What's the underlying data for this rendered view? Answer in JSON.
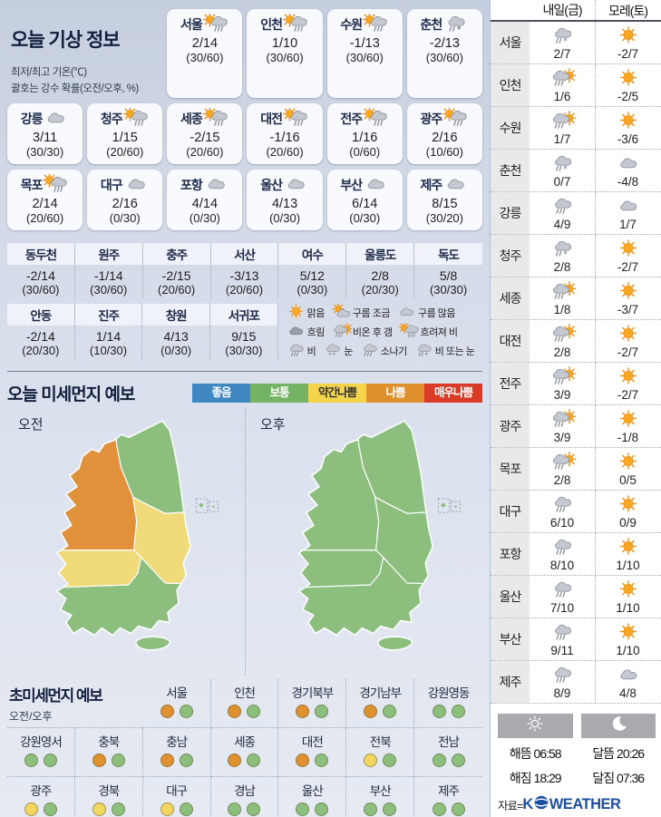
{
  "header": {
    "title": "오늘 기상 정보",
    "subtitle1": "최저/최고 기온(℃)",
    "subtitle2": "괄호는 강수 확률(오전/오후, %)"
  },
  "today": {
    "rows": [
      [
        {
          "city": "서울",
          "icon": "sun-rain",
          "temp": "2/14",
          "prob": "(30/60)"
        },
        {
          "city": "인천",
          "icon": "sun-rain",
          "temp": "1/10",
          "prob": "(30/60)"
        },
        {
          "city": "수원",
          "icon": "sun-rain",
          "temp": "-1/13",
          "prob": "(30/60)"
        },
        {
          "city": "춘천",
          "icon": "rain-snow",
          "temp": "-2/13",
          "prob": "(30/60)"
        }
      ],
      [
        {
          "city": "강릉",
          "icon": "cloud",
          "temp": "3/11",
          "prob": "(30/30)"
        },
        {
          "city": "청주",
          "icon": "sun-rain",
          "temp": "1/15",
          "prob": "(20/60)"
        },
        {
          "city": "세종",
          "icon": "sun-rain",
          "temp": "-2/15",
          "prob": "(20/60)"
        },
        {
          "city": "대전",
          "icon": "sun-rain",
          "temp": "-1/16",
          "prob": "(20/60)"
        },
        {
          "city": "전주",
          "icon": "sun-rain",
          "temp": "1/16",
          "prob": "(0/60)"
        },
        {
          "city": "광주",
          "icon": "sun-rain",
          "temp": "2/16",
          "prob": "(10/60)"
        }
      ],
      [
        {
          "city": "목포",
          "icon": "sun-rain",
          "temp": "2/14",
          "prob": "(20/60)"
        },
        {
          "city": "대구",
          "icon": "cloud",
          "temp": "2/16",
          "prob": "(0/30)"
        },
        {
          "city": "포항",
          "icon": "cloud",
          "temp": "4/14",
          "prob": "(0/30)"
        },
        {
          "city": "울산",
          "icon": "cloud",
          "temp": "4/13",
          "prob": "(0/30)"
        },
        {
          "city": "부산",
          "icon": "cloud",
          "temp": "6/14",
          "prob": "(0/30)"
        },
        {
          "city": "제주",
          "icon": "cloud",
          "temp": "8/15",
          "prob": "(30/20)"
        }
      ]
    ]
  },
  "extra": {
    "row1": [
      {
        "name": "동두천",
        "temp": "-2/14",
        "prob": "(30/60)"
      },
      {
        "name": "원주",
        "temp": "-1/14",
        "prob": "(30/60)"
      },
      {
        "name": "충주",
        "temp": "-2/15",
        "prob": "(20/60)"
      },
      {
        "name": "서산",
        "temp": "-3/13",
        "prob": "(20/60)"
      },
      {
        "name": "여수",
        "temp": "5/12",
        "prob": "(0/30)"
      },
      {
        "name": "울릉도",
        "temp": "2/8",
        "prob": "(20/30)"
      },
      {
        "name": "독도",
        "temp": "5/8",
        "prob": "(30/30)"
      }
    ],
    "row2": [
      {
        "name": "안동",
        "temp": "-2/14",
        "prob": "(20/30)"
      },
      {
        "name": "진주",
        "temp": "1/14",
        "prob": "(10/30)"
      },
      {
        "name": "창원",
        "temp": "4/13",
        "prob": "(0/30)"
      },
      {
        "name": "서귀포",
        "temp": "9/15",
        "prob": "(30/30)"
      }
    ]
  },
  "icon_legend": [
    {
      "icon": "sun",
      "label": "맑음"
    },
    {
      "icon": "sun-cloud",
      "label": "구름 조금"
    },
    {
      "icon": "cloud",
      "label": "구름 많음"
    },
    {
      "icon": "dark-cloud",
      "label": "흐림"
    },
    {
      "icon": "rain-sun",
      "label": "비온 후 갬"
    },
    {
      "icon": "sun-rain",
      "label": "흐려져 비"
    },
    {
      "icon": "rain",
      "label": "비"
    },
    {
      "icon": "snow",
      "label": "눈"
    },
    {
      "icon": "shower",
      "label": "소나기"
    },
    {
      "icon": "rain-snow",
      "label": "비 또는 눈"
    }
  ],
  "dust": {
    "title": "오늘 미세먼지 예보",
    "levels": [
      {
        "label": "좋음",
        "bg": "#3f87c1",
        "fg": "#ffffff"
      },
      {
        "label": "보통",
        "bg": "#74b364",
        "fg": "#ffffff"
      },
      {
        "label": "약간나쁨",
        "bg": "#f4d44a",
        "fg": "#333333"
      },
      {
        "label": "나쁨",
        "bg": "#df8f2c",
        "fg": "#ffffff"
      },
      {
        "label": "매우나쁨",
        "bg": "#da3b27",
        "fg": "#ffffff"
      }
    ],
    "map_palette": {
      "나쁨": "#e0913a",
      "약간나쁨": "#f1da7a",
      "보통": "#8cbf7e"
    },
    "maps": {
      "am": {
        "label": "오전",
        "regions": {
          "northwest": "나쁨",
          "northeast": "보통",
          "east_central": "약간나쁨",
          "southwest_mid": "약간나쁨",
          "south": "보통",
          "jeju": "보통"
        }
      },
      "pm": {
        "label": "오후",
        "regions": {
          "northwest": "보통",
          "northeast": "보통",
          "east_central": "보통",
          "southwest_mid": "보통",
          "south": "보통",
          "jeju": "보통"
        }
      }
    }
  },
  "ultrafine": {
    "title": "초미세먼지 예보",
    "sublabel": "오전/오후",
    "palette": {
      "나쁨": "#e0912f",
      "약간나쁨": "#f2d65f",
      "보통": "#8cbf7c"
    },
    "items": [
      {
        "name": "서울",
        "am": "나쁨",
        "pm": "보통"
      },
      {
        "name": "인천",
        "am": "나쁨",
        "pm": "보통"
      },
      {
        "name": "경기북부",
        "am": "나쁨",
        "pm": "보통"
      },
      {
        "name": "경기남부",
        "am": "나쁨",
        "pm": "보통"
      },
      {
        "name": "강원영동",
        "am": "보통",
        "pm": "보통"
      },
      {
        "name": "강원영서",
        "am": "보통",
        "pm": "보통"
      },
      {
        "name": "충북",
        "am": "나쁨",
        "pm": "보통"
      },
      {
        "name": "충남",
        "am": "나쁨",
        "pm": "보통"
      },
      {
        "name": "세종",
        "am": "나쁨",
        "pm": "보통"
      },
      {
        "name": "대전",
        "am": "나쁨",
        "pm": "보통"
      },
      {
        "name": "전북",
        "am": "약간나쁨",
        "pm": "보통"
      },
      {
        "name": "전남",
        "am": "보통",
        "pm": "보통"
      },
      {
        "name": "광주",
        "am": "약간나쁨",
        "pm": "보통"
      },
      {
        "name": "경북",
        "am": "약간나쁨",
        "pm": "보통"
      },
      {
        "name": "대구",
        "am": "약간나쁨",
        "pm": "보통"
      },
      {
        "name": "경남",
        "am": "보통",
        "pm": "보통"
      },
      {
        "name": "울산",
        "am": "보통",
        "pm": "보통"
      },
      {
        "name": "부산",
        "am": "보통",
        "pm": "보통"
      },
      {
        "name": "제주",
        "am": "보통",
        "pm": "보통"
      }
    ]
  },
  "forecast": {
    "header": {
      "day1": "내일(금)",
      "day2": "모레(토)"
    },
    "rows": [
      {
        "city": "서울",
        "d1": {
          "icon": "rain-snow",
          "temp": "2/7"
        },
        "d2": {
          "icon": "sun",
          "temp": "-2/7"
        }
      },
      {
        "city": "인천",
        "d1": {
          "icon": "rain-sun",
          "temp": "1/6"
        },
        "d2": {
          "icon": "sun",
          "temp": "-2/5"
        }
      },
      {
        "city": "수원",
        "d1": {
          "icon": "rain-sun",
          "temp": "1/7"
        },
        "d2": {
          "icon": "sun",
          "temp": "-3/6"
        }
      },
      {
        "city": "춘천",
        "d1": {
          "icon": "rain-snow",
          "temp": "0/7"
        },
        "d2": {
          "icon": "cloud",
          "temp": "-4/8"
        }
      },
      {
        "city": "강릉",
        "d1": {
          "icon": "rain",
          "temp": "4/9"
        },
        "d2": {
          "icon": "cloud",
          "temp": "1/7"
        }
      },
      {
        "city": "청주",
        "d1": {
          "icon": "rain-snow",
          "temp": "2/8"
        },
        "d2": {
          "icon": "sun",
          "temp": "-2/7"
        }
      },
      {
        "city": "세종",
        "d1": {
          "icon": "rain-sun",
          "temp": "1/8"
        },
        "d2": {
          "icon": "sun",
          "temp": "-3/7"
        }
      },
      {
        "city": "대전",
        "d1": {
          "icon": "rain-sun",
          "temp": "2/8"
        },
        "d2": {
          "icon": "sun",
          "temp": "-2/7"
        }
      },
      {
        "city": "전주",
        "d1": {
          "icon": "rain-sun",
          "temp": "3/9"
        },
        "d2": {
          "icon": "sun",
          "temp": "-2/7"
        }
      },
      {
        "city": "광주",
        "d1": {
          "icon": "rain-sun",
          "temp": "3/9"
        },
        "d2": {
          "icon": "sun",
          "temp": "-1/8"
        }
      },
      {
        "city": "목포",
        "d1": {
          "icon": "rain-sun",
          "temp": "2/8"
        },
        "d2": {
          "icon": "sun",
          "temp": "0/5"
        }
      },
      {
        "city": "대구",
        "d1": {
          "icon": "rain",
          "temp": "6/10"
        },
        "d2": {
          "icon": "sun",
          "temp": "0/9"
        }
      },
      {
        "city": "포항",
        "d1": {
          "icon": "rain",
          "temp": "8/10"
        },
        "d2": {
          "icon": "sun",
          "temp": "1/10"
        }
      },
      {
        "city": "울산",
        "d1": {
          "icon": "rain",
          "temp": "7/10"
        },
        "d2": {
          "icon": "sun",
          "temp": "1/10"
        }
      },
      {
        "city": "부산",
        "d1": {
          "icon": "rain",
          "temp": "9/11"
        },
        "d2": {
          "icon": "sun",
          "temp": "1/10"
        }
      },
      {
        "city": "제주",
        "d1": {
          "icon": "rain",
          "temp": "8/9"
        },
        "d2": {
          "icon": "cloud",
          "temp": "4/8"
        }
      }
    ]
  },
  "sunmoon": {
    "sun": {
      "rise_label": "해뜸",
      "rise": "06:58",
      "set_label": "해짐",
      "set": "18:29"
    },
    "moon": {
      "rise_label": "달뜸",
      "rise": "20:26",
      "set_label": "달짐",
      "set": "07:36"
    }
  },
  "source": {
    "prefix": "자료=",
    "brand_k": "K",
    "brand_rest": "WEATHER"
  }
}
